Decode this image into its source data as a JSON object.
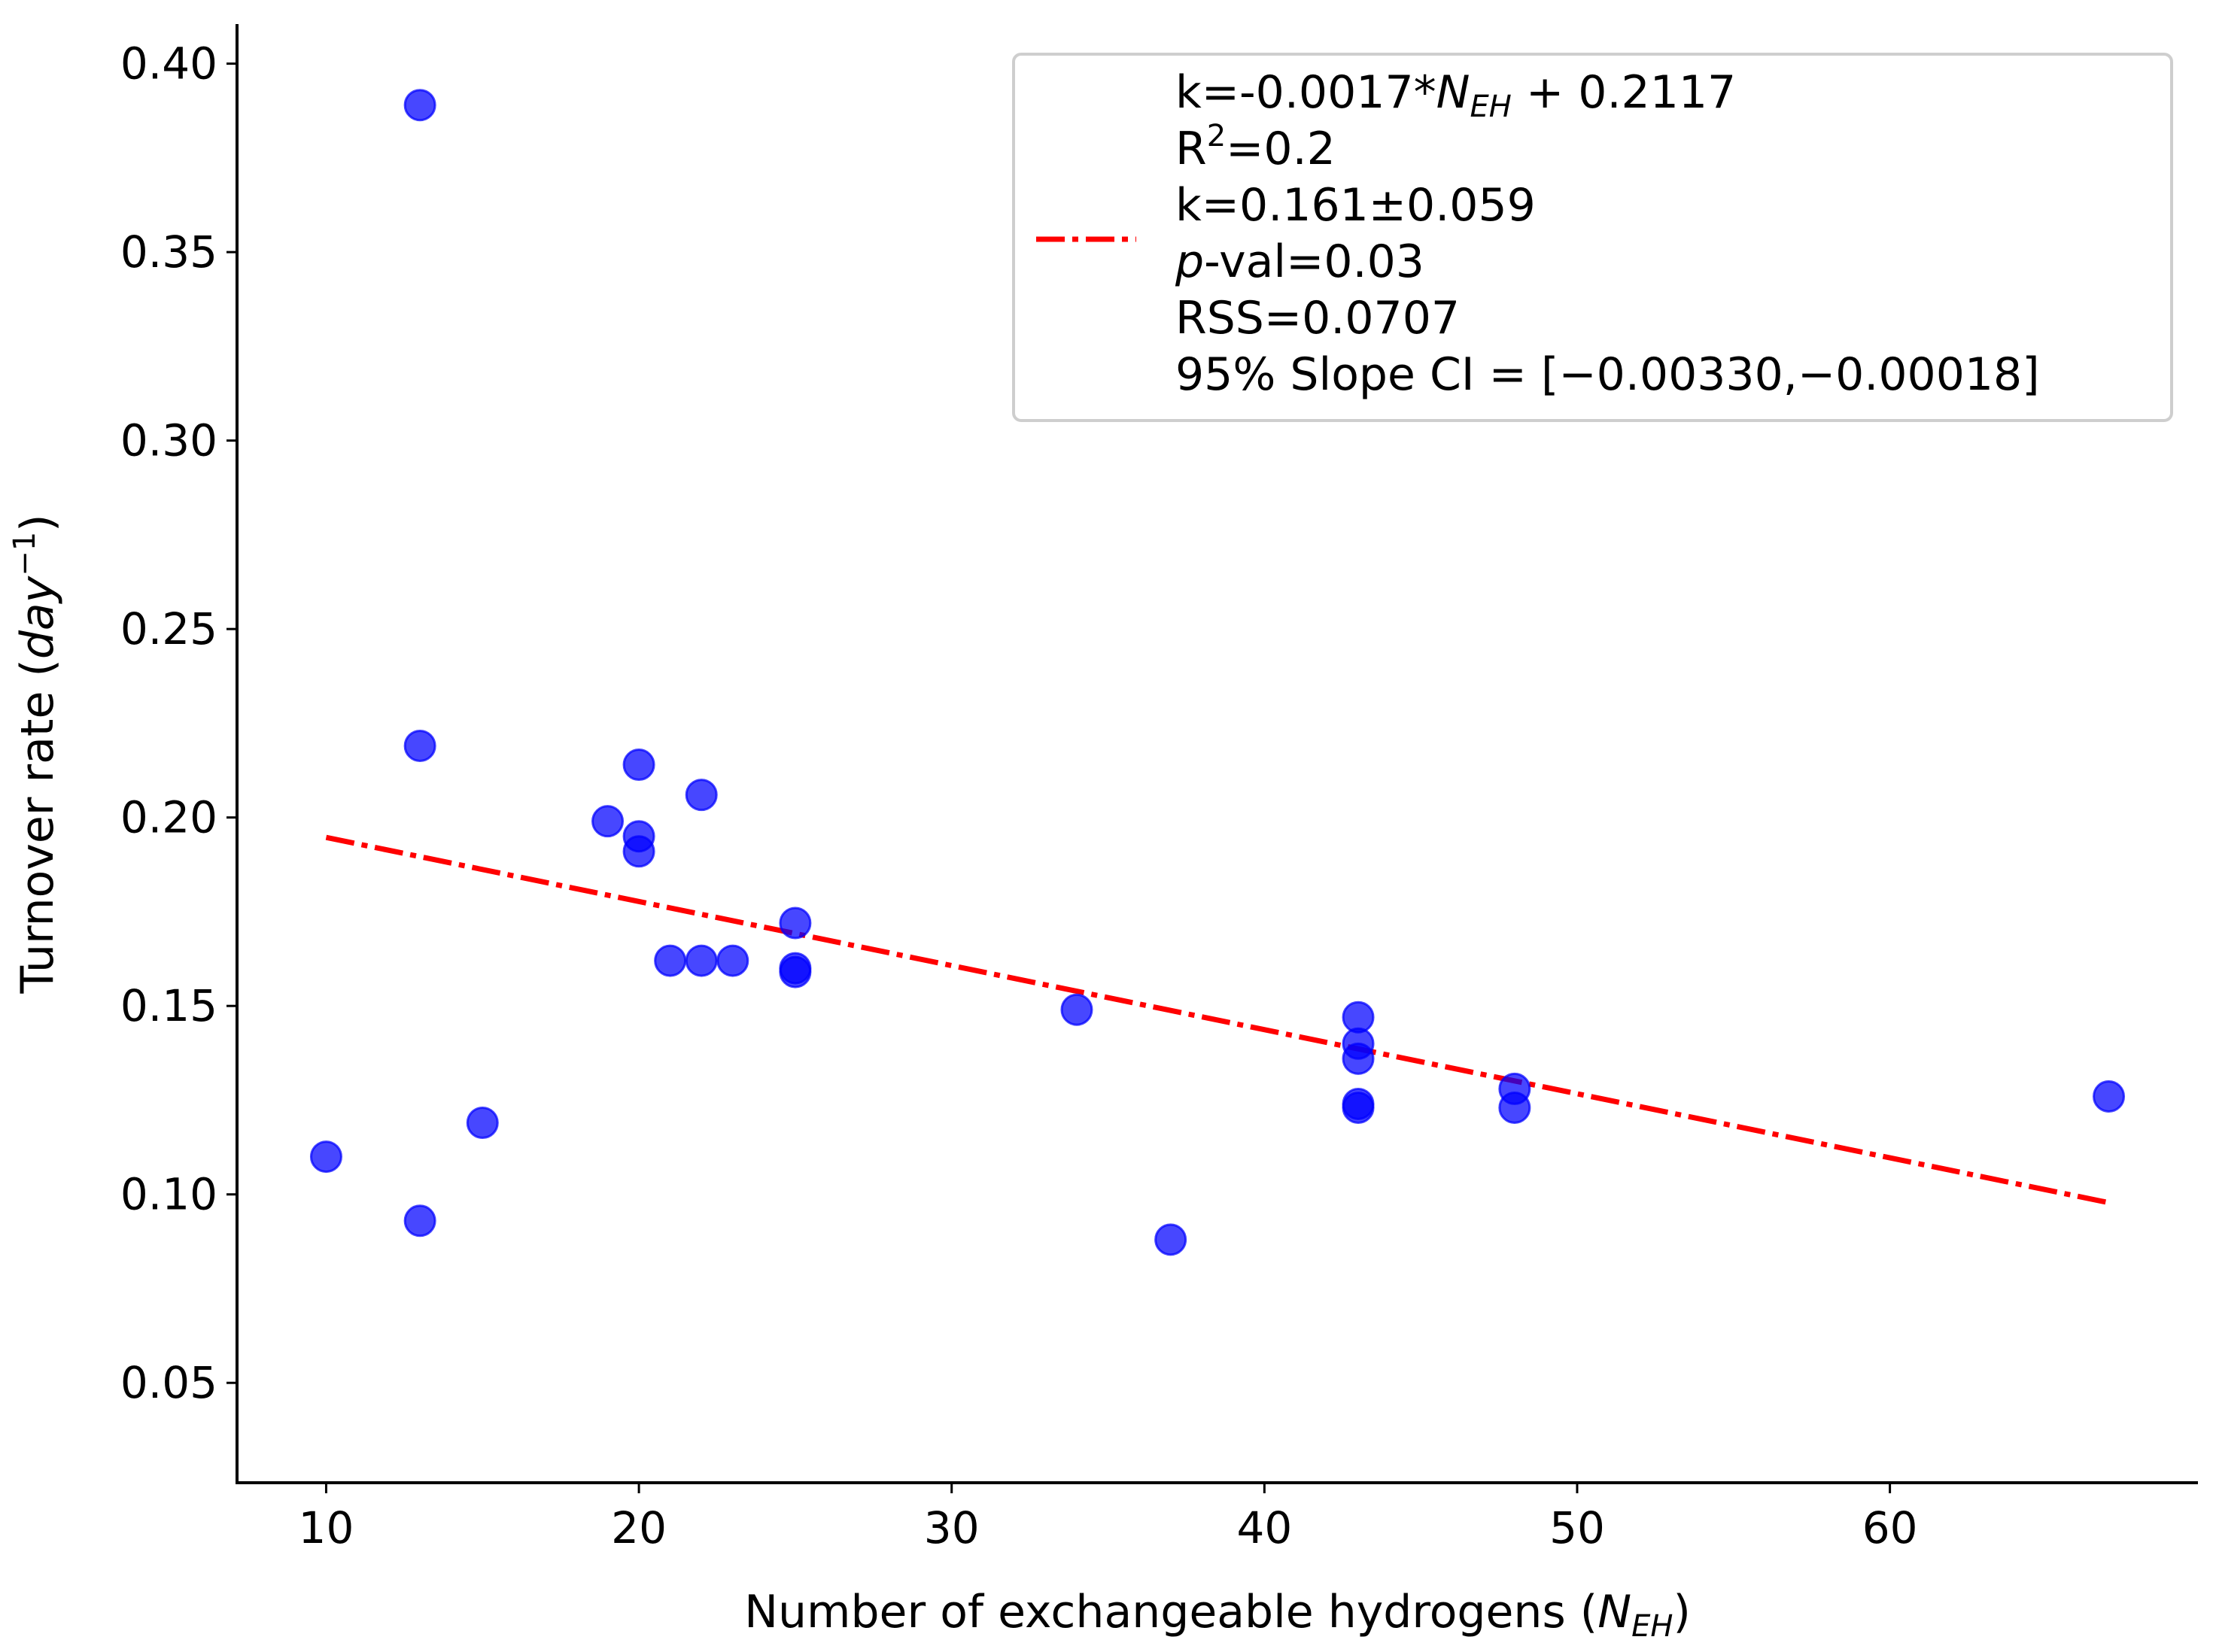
{
  "chart_data": {
    "type": "scatter",
    "title": "",
    "xlabel": {
      "main": "Number of exchangeable hydrogens (",
      "var": "N",
      "sub": "EH",
      "close": ")"
    },
    "ylabel": {
      "main": "Turnover rate (",
      "var": "day",
      "sup": "−1",
      "close": ")"
    },
    "xlim": [
      7.15,
      69.85
    ],
    "ylim": [
      0.0235,
      0.4105
    ],
    "xticks": [
      10,
      20,
      30,
      40,
      50,
      60
    ],
    "xtick_labels": [
      "10",
      "20",
      "30",
      "40",
      "50",
      "60"
    ],
    "yticks": [
      0.05,
      0.1,
      0.15,
      0.2,
      0.25,
      0.3,
      0.35,
      0.4
    ],
    "ytick_labels": [
      "0.05",
      "0.10",
      "0.15",
      "0.20",
      "0.25",
      "0.30",
      "0.35",
      "0.40"
    ],
    "grid": false,
    "marker_color": "#0000ff",
    "fit_color": "#ff0000",
    "points": [
      {
        "x": 10,
        "y": 0.11
      },
      {
        "x": 13,
        "y": 0.389
      },
      {
        "x": 13,
        "y": 0.219
      },
      {
        "x": 13,
        "y": 0.093
      },
      {
        "x": 15,
        "y": 0.119
      },
      {
        "x": 19,
        "y": 0.199
      },
      {
        "x": 20,
        "y": 0.214
      },
      {
        "x": 20,
        "y": 0.195
      },
      {
        "x": 20,
        "y": 0.191
      },
      {
        "x": 21,
        "y": 0.162
      },
      {
        "x": 22,
        "y": 0.206
      },
      {
        "x": 22,
        "y": 0.162
      },
      {
        "x": 23,
        "y": 0.162
      },
      {
        "x": 25,
        "y": 0.172
      },
      {
        "x": 25,
        "y": 0.16
      },
      {
        "x": 25,
        "y": 0.159
      },
      {
        "x": 34,
        "y": 0.149
      },
      {
        "x": 37,
        "y": 0.088
      },
      {
        "x": 43,
        "y": 0.147
      },
      {
        "x": 43,
        "y": 0.14
      },
      {
        "x": 43,
        "y": 0.136
      },
      {
        "x": 43,
        "y": 0.124
      },
      {
        "x": 43,
        "y": 0.123
      },
      {
        "x": 48,
        "y": 0.128
      },
      {
        "x": 48,
        "y": 0.123
      },
      {
        "x": 67,
        "y": 0.126
      }
    ],
    "fit_line": {
      "slope": -0.0017,
      "intercept": 0.2117,
      "x_start": 10,
      "x_end": 67,
      "style": "dash-dot"
    },
    "legend": {
      "placement": "top-right",
      "line1": {
        "pre": "k=-0.0017*",
        "var": "N",
        "sub": "EH",
        "post": " + 0.2117"
      },
      "line2": {
        "pre": "R",
        "sup": "2",
        "post": "=0.2"
      },
      "line3": "k=0.161±0.059",
      "line4": {
        "var": "p",
        "post": "-val=0.03"
      },
      "line5": "RSS=0.0707",
      "line6": "95% Slope CI = [−0.00330,−0.00018]"
    }
  }
}
